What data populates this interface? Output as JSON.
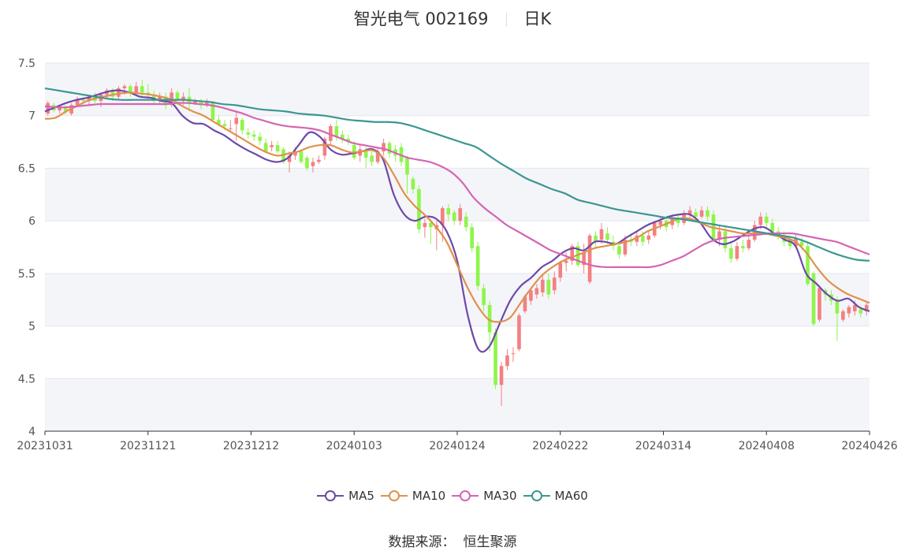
{
  "header": {
    "stock_name": "智光电气 002169",
    "period": "日K"
  },
  "footer": {
    "source_label": "数据来源：",
    "source_name": "恒生聚源"
  },
  "colors": {
    "up": "#f47f82",
    "down": "#8ef54a",
    "ma5": "#6e49a8",
    "ma10": "#e0914b",
    "ma30": "#d565b3",
    "ma60": "#3d9692",
    "grid": "#e3e6ef",
    "band": "#f4f5f9",
    "axis": "#333333",
    "tick_text": "#555555"
  },
  "chart_data": {
    "type": "candlestick",
    "title": "智光电气 002169 日K",
    "ylim": [
      4,
      7.5
    ],
    "y_ticks": [
      "4",
      "4.5",
      "5",
      "5.5",
      "6",
      "6.5",
      "7",
      "7.5"
    ],
    "x_ticks": [
      "20231031",
      "20231121",
      "20231212",
      "20240103",
      "20240124",
      "20240222",
      "20240314",
      "20240408",
      "20240426"
    ],
    "legend_position": "bottom",
    "grid": true,
    "ohlc_daily": [
      [
        7.02,
        7.12,
        7.14,
        7.0
      ],
      [
        7.1,
        7.05,
        7.12,
        7.03
      ],
      [
        7.05,
        7.08,
        7.1,
        7.02
      ],
      [
        7.08,
        7.04,
        7.1,
        7.01
      ],
      [
        7.02,
        7.1,
        7.12,
        7.0
      ],
      [
        7.1,
        7.16,
        7.18,
        7.08
      ],
      [
        7.15,
        7.14,
        7.18,
        7.1
      ],
      [
        7.14,
        7.18,
        7.2,
        7.1
      ],
      [
        7.18,
        7.14,
        7.22,
        7.12
      ],
      [
        7.14,
        7.2,
        7.22,
        7.08
      ],
      [
        7.2,
        7.24,
        7.26,
        7.16
      ],
      [
        7.24,
        7.18,
        7.26,
        7.14
      ],
      [
        7.18,
        7.26,
        7.28,
        7.16
      ],
      [
        7.26,
        7.28,
        7.3,
        7.2
      ],
      [
        7.28,
        7.22,
        7.3,
        7.18
      ],
      [
        7.22,
        7.28,
        7.32,
        7.2
      ],
      [
        7.28,
        7.22,
        7.34,
        7.18
      ],
      [
        7.22,
        7.2,
        7.3,
        7.16
      ],
      [
        7.2,
        7.14,
        7.24,
        7.12
      ],
      [
        7.14,
        7.18,
        7.22,
        7.1
      ],
      [
        7.18,
        7.1,
        7.22,
        7.06
      ],
      [
        7.1,
        7.22,
        7.26,
        7.08
      ],
      [
        7.22,
        7.14,
        7.24,
        7.1
      ],
      [
        7.14,
        7.18,
        7.22,
        7.1
      ],
      [
        7.18,
        7.12,
        7.26,
        7.04
      ],
      [
        7.12,
        7.14,
        7.16,
        7.1
      ],
      [
        7.14,
        7.1,
        7.16,
        7.06
      ],
      [
        7.1,
        7.14,
        7.16,
        7.08
      ],
      [
        7.12,
        6.96,
        7.14,
        6.94
      ],
      [
        6.96,
        6.92,
        7.0,
        6.9
      ],
      [
        6.92,
        6.9,
        6.96,
        6.86
      ],
      [
        6.88,
        6.88,
        6.96,
        6.84
      ],
      [
        6.92,
        6.98,
        7.04,
        6.76
      ],
      [
        6.96,
        6.86,
        6.98,
        6.82
      ],
      [
        6.84,
        6.82,
        6.88,
        6.78
      ],
      [
        6.82,
        6.8,
        6.86,
        6.76
      ],
      [
        6.8,
        6.76,
        6.84,
        6.72
      ],
      [
        6.74,
        6.66,
        6.78,
        6.64
      ],
      [
        6.7,
        6.72,
        6.76,
        6.66
      ],
      [
        6.72,
        6.66,
        6.76,
        6.64
      ],
      [
        6.68,
        6.56,
        6.7,
        6.54
      ],
      [
        6.56,
        6.62,
        6.66,
        6.46
      ],
      [
        6.62,
        6.66,
        6.7,
        6.58
      ],
      [
        6.66,
        6.56,
        6.68,
        6.54
      ],
      [
        6.6,
        6.5,
        6.62,
        6.48
      ],
      [
        6.52,
        6.56,
        6.6,
        6.46
      ],
      [
        6.56,
        6.58,
        6.62,
        6.54
      ],
      [
        6.62,
        6.78,
        6.8,
        6.58
      ],
      [
        6.76,
        6.9,
        6.92,
        6.72
      ],
      [
        6.9,
        6.8,
        6.96,
        6.76
      ],
      [
        6.82,
        6.78,
        6.86,
        6.74
      ],
      [
        6.78,
        6.76,
        6.82,
        6.72
      ],
      [
        6.72,
        6.6,
        6.76,
        6.58
      ],
      [
        6.62,
        6.68,
        6.72,
        6.56
      ],
      [
        6.66,
        6.6,
        6.7,
        6.5
      ],
      [
        6.62,
        6.56,
        6.66,
        6.52
      ],
      [
        6.56,
        6.66,
        6.7,
        6.54
      ],
      [
        6.66,
        6.74,
        6.78,
        6.62
      ],
      [
        6.74,
        6.64,
        6.76,
        6.6
      ],
      [
        6.68,
        6.62,
        6.72,
        6.56
      ],
      [
        6.7,
        6.56,
        6.74,
        6.52
      ],
      [
        6.6,
        6.44,
        6.62,
        6.26
      ],
      [
        6.4,
        6.3,
        6.42,
        6.26
      ],
      [
        6.3,
        5.92,
        6.34,
        5.88
      ],
      [
        5.94,
        5.98,
        6.02,
        5.84
      ],
      [
        5.98,
        5.94,
        6.02,
        5.78
      ],
      [
        5.92,
        5.96,
        6.0,
        5.72
      ],
      [
        5.96,
        6.12,
        6.14,
        5.8
      ],
      [
        6.12,
        6.06,
        6.16,
        6.0
      ],
      [
        6.08,
        6.0,
        6.1,
        5.96
      ],
      [
        6.0,
        6.12,
        6.16,
        5.96
      ],
      [
        6.04,
        5.94,
        6.08,
        5.9
      ],
      [
        5.94,
        5.74,
        5.98,
        5.7
      ],
      [
        5.76,
        5.38,
        5.8,
        5.34
      ],
      [
        5.36,
        5.2,
        5.4,
        5.14
      ],
      [
        5.2,
        4.94,
        5.24,
        4.76
      ],
      [
        4.94,
        4.44,
        4.98,
        4.4
      ],
      [
        4.44,
        4.62,
        4.66,
        4.24
      ],
      [
        4.62,
        4.72,
        4.78,
        4.58
      ],
      [
        4.74,
        4.74,
        4.8,
        4.66
      ],
      [
        4.78,
        5.1,
        5.12,
        4.76
      ],
      [
        5.14,
        5.28,
        5.3,
        5.12
      ],
      [
        5.24,
        5.34,
        5.36,
        5.2
      ],
      [
        5.3,
        5.36,
        5.4,
        5.26
      ],
      [
        5.32,
        5.44,
        5.5,
        5.28
      ],
      [
        5.44,
        5.3,
        5.5,
        5.26
      ],
      [
        5.34,
        5.46,
        5.52,
        5.3
      ],
      [
        5.46,
        5.6,
        5.62,
        5.42
      ],
      [
        5.6,
        5.62,
        5.7,
        5.52
      ],
      [
        5.62,
        5.76,
        5.78,
        5.58
      ],
      [
        5.76,
        5.58,
        5.8,
        5.56
      ],
      [
        5.58,
        5.7,
        5.78,
        5.5
      ],
      [
        5.42,
        5.86,
        5.88,
        5.4
      ],
      [
        5.86,
        5.8,
        5.9,
        5.74
      ],
      [
        5.82,
        5.92,
        5.98,
        5.78
      ],
      [
        5.88,
        5.82,
        5.94,
        5.78
      ],
      [
        5.8,
        5.76,
        5.86,
        5.72
      ],
      [
        5.76,
        5.68,
        5.8,
        5.64
      ],
      [
        5.68,
        5.82,
        5.86,
        5.66
      ],
      [
        5.82,
        5.8,
        5.88,
        5.76
      ],
      [
        5.8,
        5.86,
        5.9,
        5.76
      ],
      [
        5.86,
        5.8,
        5.9,
        5.76
      ],
      [
        5.82,
        5.86,
        5.9,
        5.78
      ],
      [
        5.86,
        5.98,
        6.0,
        5.84
      ],
      [
        5.96,
        6.0,
        6.04,
        5.92
      ],
      [
        6.0,
        5.94,
        6.04,
        5.9
      ],
      [
        5.96,
        6.02,
        6.06,
        5.92
      ],
      [
        6.02,
        5.98,
        6.06,
        5.94
      ],
      [
        5.98,
        6.06,
        6.1,
        5.96
      ],
      [
        6.06,
        6.1,
        6.14,
        6.02
      ],
      [
        6.08,
        6.04,
        6.12,
        6.0
      ],
      [
        6.04,
        6.1,
        6.14,
        6.02
      ],
      [
        6.1,
        6.04,
        6.14,
        6.0
      ],
      [
        6.06,
        5.82,
        6.1,
        5.8
      ],
      [
        5.82,
        5.9,
        5.96,
        5.76
      ],
      [
        5.9,
        5.74,
        5.96,
        5.7
      ],
      [
        5.74,
        5.64,
        5.78,
        5.6
      ],
      [
        5.64,
        5.76,
        5.8,
        5.62
      ],
      [
        5.76,
        5.74,
        5.82,
        5.7
      ],
      [
        5.74,
        5.82,
        5.86,
        5.72
      ],
      [
        5.82,
        5.96,
        6.0,
        5.8
      ],
      [
        5.96,
        6.04,
        6.08,
        5.92
      ],
      [
        6.04,
        5.98,
        6.08,
        5.94
      ],
      [
        5.98,
        5.9,
        6.02,
        5.86
      ],
      [
        5.9,
        5.86,
        5.94,
        5.82
      ],
      [
        5.86,
        5.8,
        5.9,
        5.76
      ],
      [
        5.82,
        5.76,
        5.86,
        5.72
      ],
      [
        5.76,
        5.84,
        5.88,
        5.74
      ],
      [
        5.8,
        5.76,
        5.84,
        5.72
      ],
      [
        5.76,
        5.4,
        5.8,
        5.38
      ],
      [
        5.5,
        5.02,
        5.52,
        5.0
      ],
      [
        5.06,
        5.36,
        5.38,
        5.04
      ],
      [
        5.34,
        5.3,
        5.36,
        5.24
      ],
      [
        5.3,
        5.24,
        5.34,
        5.2
      ],
      [
        5.24,
        5.12,
        5.28,
        4.86
      ],
      [
        5.06,
        5.14,
        5.16,
        5.04
      ],
      [
        5.12,
        5.18,
        5.2,
        5.08
      ],
      [
        5.14,
        5.2,
        5.24,
        5.1
      ],
      [
        5.16,
        5.12,
        5.18,
        5.08
      ],
      [
        5.14,
        5.2,
        5.22,
        5.1
      ]
    ],
    "series": [
      {
        "name": "MA5",
        "values": [
          7.04,
          7.08,
          7.12,
          7.15,
          7.17,
          7.2,
          7.23,
          7.24,
          7.22,
          7.18,
          7.17,
          7.14,
          7.12,
          7.0,
          6.93,
          6.92,
          6.86,
          6.81,
          6.74,
          6.68,
          6.63,
          6.58,
          6.56,
          6.6,
          6.72,
          6.84,
          6.8,
          6.68,
          6.63,
          6.64,
          6.66,
          6.68,
          6.58,
          6.25,
          6.06,
          6.0,
          6.04,
          6.02,
          5.9,
          5.62,
          5.1,
          4.78,
          4.8,
          5.02,
          5.24,
          5.38,
          5.46,
          5.56,
          5.62,
          5.7,
          5.74,
          5.72,
          5.8,
          5.8,
          5.78,
          5.84,
          5.9,
          5.96,
          6.0,
          6.04,
          6.06,
          6.06,
          5.98,
          5.84,
          5.78,
          5.8,
          5.86,
          5.92,
          5.94,
          5.88,
          5.82,
          5.76,
          5.5,
          5.4,
          5.3,
          5.24,
          5.26,
          5.18,
          5.14
        ]
      },
      {
        "name": "MA10",
        "values": [
          6.97,
          6.98,
          7.04,
          7.09,
          7.14,
          7.17,
          7.19,
          7.21,
          7.22,
          7.21,
          7.2,
          7.18,
          7.15,
          7.09,
          7.04,
          7.0,
          6.94,
          6.88,
          6.82,
          6.76,
          6.7,
          6.65,
          6.62,
          6.64,
          6.66,
          6.7,
          6.72,
          6.72,
          6.68,
          6.65,
          6.66,
          6.67,
          6.6,
          6.44,
          6.26,
          6.14,
          6.05,
          5.94,
          5.8,
          5.58,
          5.36,
          5.18,
          5.06,
          5.04,
          5.08,
          5.22,
          5.36,
          5.48,
          5.56,
          5.62,
          5.66,
          5.7,
          5.74,
          5.76,
          5.78,
          5.8,
          5.84,
          5.9,
          5.94,
          5.98,
          6.02,
          6.02,
          5.98,
          5.94,
          5.92,
          5.9,
          5.88,
          5.88,
          5.88,
          5.86,
          5.84,
          5.8,
          5.7,
          5.56,
          5.44,
          5.36,
          5.3,
          5.26,
          5.22
        ]
      },
      {
        "name": "MA30",
        "values": [
          7.09,
          7.08,
          7.08,
          7.09,
          7.1,
          7.11,
          7.11,
          7.11,
          7.11,
          7.11,
          7.11,
          7.11,
          7.12,
          7.12,
          7.11,
          7.1,
          7.08,
          7.05,
          7.02,
          6.98,
          6.95,
          6.92,
          6.9,
          6.89,
          6.88,
          6.86,
          6.82,
          6.78,
          6.74,
          6.72,
          6.7,
          6.68,
          6.64,
          6.6,
          6.58,
          6.56,
          6.52,
          6.46,
          6.36,
          6.22,
          6.12,
          6.04,
          5.96,
          5.9,
          5.84,
          5.78,
          5.72,
          5.68,
          5.64,
          5.6,
          5.57,
          5.56,
          5.56,
          5.56,
          5.56,
          5.56,
          5.58,
          5.62,
          5.66,
          5.72,
          5.78,
          5.82,
          5.84,
          5.85,
          5.86,
          5.87,
          5.88,
          5.88,
          5.88,
          5.86,
          5.84,
          5.82,
          5.8,
          5.76,
          5.72,
          5.68
        ]
      },
      {
        "name": "MA60",
        "values": [
          7.26,
          7.24,
          7.22,
          7.2,
          7.18,
          7.16,
          7.15,
          7.15,
          7.15,
          7.15,
          7.15,
          7.15,
          7.14,
          7.13,
          7.11,
          7.1,
          7.08,
          7.06,
          7.05,
          7.04,
          7.02,
          7.01,
          7.0,
          6.98,
          6.96,
          6.95,
          6.94,
          6.94,
          6.93,
          6.9,
          6.86,
          6.82,
          6.78,
          6.74,
          6.7,
          6.62,
          6.54,
          6.47,
          6.4,
          6.35,
          6.3,
          6.26,
          6.2,
          6.17,
          6.14,
          6.11,
          6.09,
          6.07,
          6.05,
          6.03,
          6.02,
          6.0,
          5.98,
          5.96,
          5.94,
          5.92,
          5.9,
          5.88,
          5.86,
          5.84,
          5.8,
          5.75,
          5.7,
          5.66,
          5.63,
          5.62
        ]
      }
    ]
  }
}
